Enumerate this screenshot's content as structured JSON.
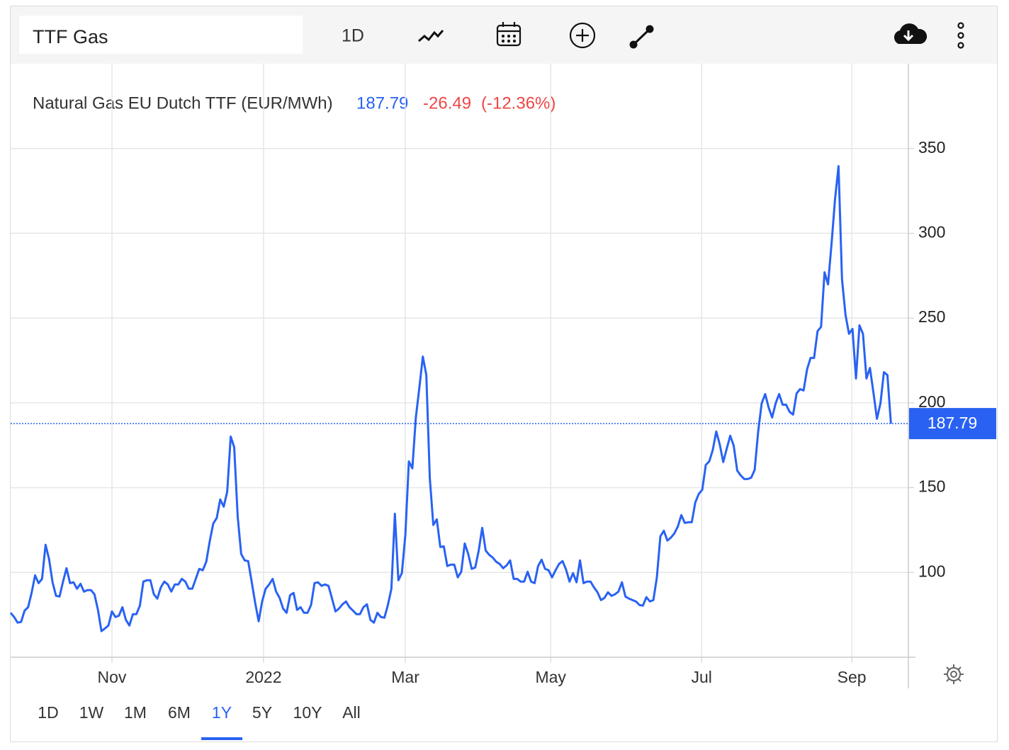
{
  "toolbar": {
    "symbol": "TTF Gas",
    "interval": "1D"
  },
  "chart_data": {
    "type": "line",
    "title": "Natural Gas EU Dutch TTF (EUR/MWh)",
    "change": -26.49,
    "change_percent_label": "(-12.36%)",
    "change_color": "#ef4747",
    "series": [
      {
        "name": "Natural Gas EU Dutch TTF",
        "color": "#2962f3",
        "values": [
          76.2,
          73.7,
          70.4,
          70.8,
          77.5,
          79.5,
          87.9,
          98.3,
          93.7,
          96.2,
          116.3,
          107.9,
          94.2,
          86.2,
          85.8,
          94.6,
          102.5,
          93.7,
          94.2,
          90.4,
          93.3,
          88.7,
          89.6,
          89.6,
          87.1,
          77.9,
          65.4,
          67,
          68.7,
          77,
          73.7,
          74.5,
          79.5,
          72,
          68.7,
          75.4,
          75.4,
          80.4,
          94.6,
          95.4,
          95.4,
          87.1,
          84.6,
          91.2,
          94.6,
          92.9,
          88.7,
          92.9,
          92.9,
          96.2,
          94.6,
          90.4,
          90.4,
          96.2,
          102.1,
          101.3,
          106.3,
          118.4,
          128.8,
          132.1,
          143,
          138.8,
          147.6,
          180.1,
          173.9,
          133,
          110.9,
          107.1,
          106.7,
          94.6,
          82.1,
          71.2,
          82.9,
          90.4,
          92.9,
          96.2,
          88.7,
          85,
          78.7,
          76.2,
          86.6,
          87.9,
          77.9,
          79.5,
          76.2,
          76.2,
          80.8,
          93.7,
          94.2,
          92.1,
          92.9,
          92.1,
          84.6,
          77,
          78.7,
          81.2,
          82.9,
          79.5,
          77.5,
          75.4,
          75.4,
          79.5,
          81.2,
          72,
          70.4,
          76.2,
          73.7,
          73.3,
          80.8,
          90.4,
          134.6,
          95.4,
          99.6,
          122.1,
          165.5,
          161.4,
          191.4,
          208.9,
          227.3,
          216.4,
          155.5,
          128,
          131.3,
          115,
          115.4,
          103.8,
          104.6,
          104.6,
          97.1,
          100.4,
          117.1,
          110.9,
          102.1,
          102.9,
          112.9,
          126.3,
          112.9,
          110.4,
          108.8,
          106.3,
          105,
          102.5,
          104.2,
          107.1,
          96.2,
          96.2,
          94.6,
          94.6,
          100.4,
          94.6,
          93.7,
          103.8,
          107.5,
          102.1,
          101.3,
          97.1,
          101.3,
          105,
          106.7,
          101.7,
          94.6,
          99.6,
          94.2,
          107.1,
          93.7,
          94.6,
          94.6,
          91.2,
          88.3,
          83.7,
          85,
          88.3,
          86.2,
          87.1,
          88.7,
          94.2,
          85.8,
          84.6,
          83.7,
          82.9,
          80.8,
          80.4,
          85.4,
          82.9,
          83.7,
          97.1,
          121.3,
          124.6,
          118.8,
          120.5,
          123,
          127.1,
          133.8,
          129.2,
          129.6,
          129.6,
          141.3,
          146.3,
          148.8,
          163.4,
          165.5,
          172.2,
          183.1,
          175.5,
          165.1,
          173,
          180.6,
          174.7,
          160.1,
          157.2,
          155.1,
          155.1,
          155.9,
          160.5,
          183.1,
          199.7,
          205.2,
          197.2,
          191.4,
          199.7,
          205.2,
          198.9,
          198.9,
          194.7,
          193.1,
          205.6,
          208.1,
          207.3,
          219.8,
          226.5,
          226.5,
          242.3,
          244.8,
          277,
          269.9,
          293.7,
          320,
          339.6,
          272.8,
          251.9,
          240.7,
          243.6,
          214.4,
          245.7,
          240.7,
          214.4,
          220.6,
          206,
          190.6,
          199.7,
          218.1,
          216.4,
          187.79
        ]
      }
    ],
    "xlim": [
      0,
      257
    ],
    "xticks": [
      {
        "value": 29,
        "label": "Nov"
      },
      {
        "value": 72.4,
        "label": "2022"
      },
      {
        "value": 113,
        "label": "Mar"
      },
      {
        "value": 154.6,
        "label": "May"
      },
      {
        "value": 197.8,
        "label": "Jul"
      },
      {
        "value": 240.8,
        "label": "Sep"
      }
    ],
    "ylim": [
      50,
      400
    ],
    "yticks": [
      100,
      150,
      200,
      250,
      300,
      350
    ],
    "grid": true
  },
  "range_selector": {
    "options": [
      "1D",
      "1W",
      "1M",
      "6M",
      "1Y",
      "5Y",
      "10Y",
      "All"
    ],
    "selected": 4
  }
}
